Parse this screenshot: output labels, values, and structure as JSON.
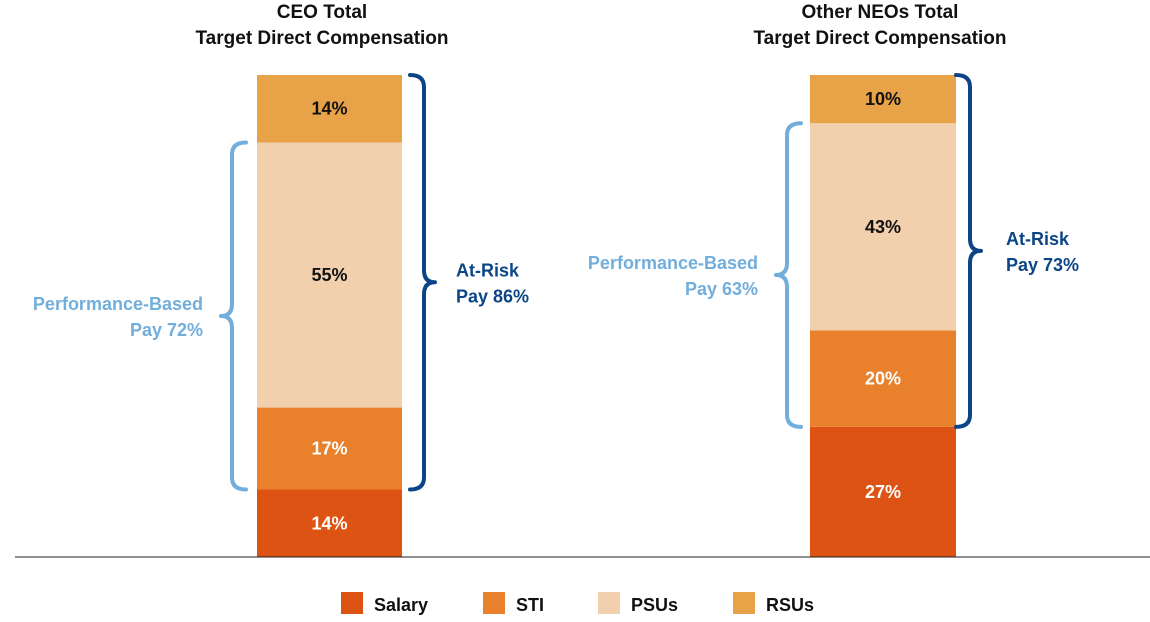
{
  "chart_data": {
    "type": "bar",
    "stacked": true,
    "legend_position": "bottom",
    "grid": false,
    "ylim": [
      0,
      100
    ],
    "series_order": [
      "Salary",
      "STI",
      "PSUs",
      "RSUs"
    ],
    "colors": {
      "Salary": "#dd5314",
      "STI": "#e8802c",
      "PSUs": "#f2cfad",
      "RSUs": "#e8a247",
      "performance_bracket": "#72aedb",
      "at_risk_bracket": "#0b4587"
    },
    "charts": [
      {
        "title": "CEO Total Target Direct Compensation",
        "title_lines": [
          "CEO Total",
          "Target Direct Compensation"
        ],
        "segments": [
          {
            "name": "Salary",
            "value": 14,
            "label": "14%"
          },
          {
            "name": "STI",
            "value": 17,
            "label": "17%"
          },
          {
            "name": "PSUs",
            "value": 55,
            "label": "55%"
          },
          {
            "name": "RSUs",
            "value": 14,
            "label": "14%"
          }
        ],
        "performance_based": {
          "lines": [
            "Performance-Based",
            "Pay 72%"
          ],
          "value": 72,
          "from": 14,
          "to": 86
        },
        "at_risk": {
          "lines": [
            "At-Risk",
            "Pay 86%"
          ],
          "value": 86,
          "from": 14,
          "to": 100
        }
      },
      {
        "title": "Other NEOs Total Target Direct Compensation",
        "title_lines": [
          "Other NEOs Total",
          "Target Direct Compensation"
        ],
        "segments": [
          {
            "name": "Salary",
            "value": 27,
            "label": "27%"
          },
          {
            "name": "STI",
            "value": 20,
            "label": "20%"
          },
          {
            "name": "PSUs",
            "value": 43,
            "label": "43%"
          },
          {
            "name": "RSUs",
            "value": 10,
            "label": "10%"
          }
        ],
        "performance_based": {
          "lines": [
            "Performance-Based",
            "Pay 63%"
          ],
          "value": 63,
          "from": 27,
          "to": 90
        },
        "at_risk": {
          "lines": [
            "At-Risk",
            "Pay 73%"
          ],
          "value": 73,
          "from": 27,
          "to": 100
        }
      }
    ]
  },
  "legend": [
    {
      "name": "Salary",
      "label": "Salary"
    },
    {
      "name": "STI",
      "label": "STI"
    },
    {
      "name": "PSUs",
      "label": "PSUs"
    },
    {
      "name": "RSUs",
      "label": "RSUs"
    }
  ]
}
